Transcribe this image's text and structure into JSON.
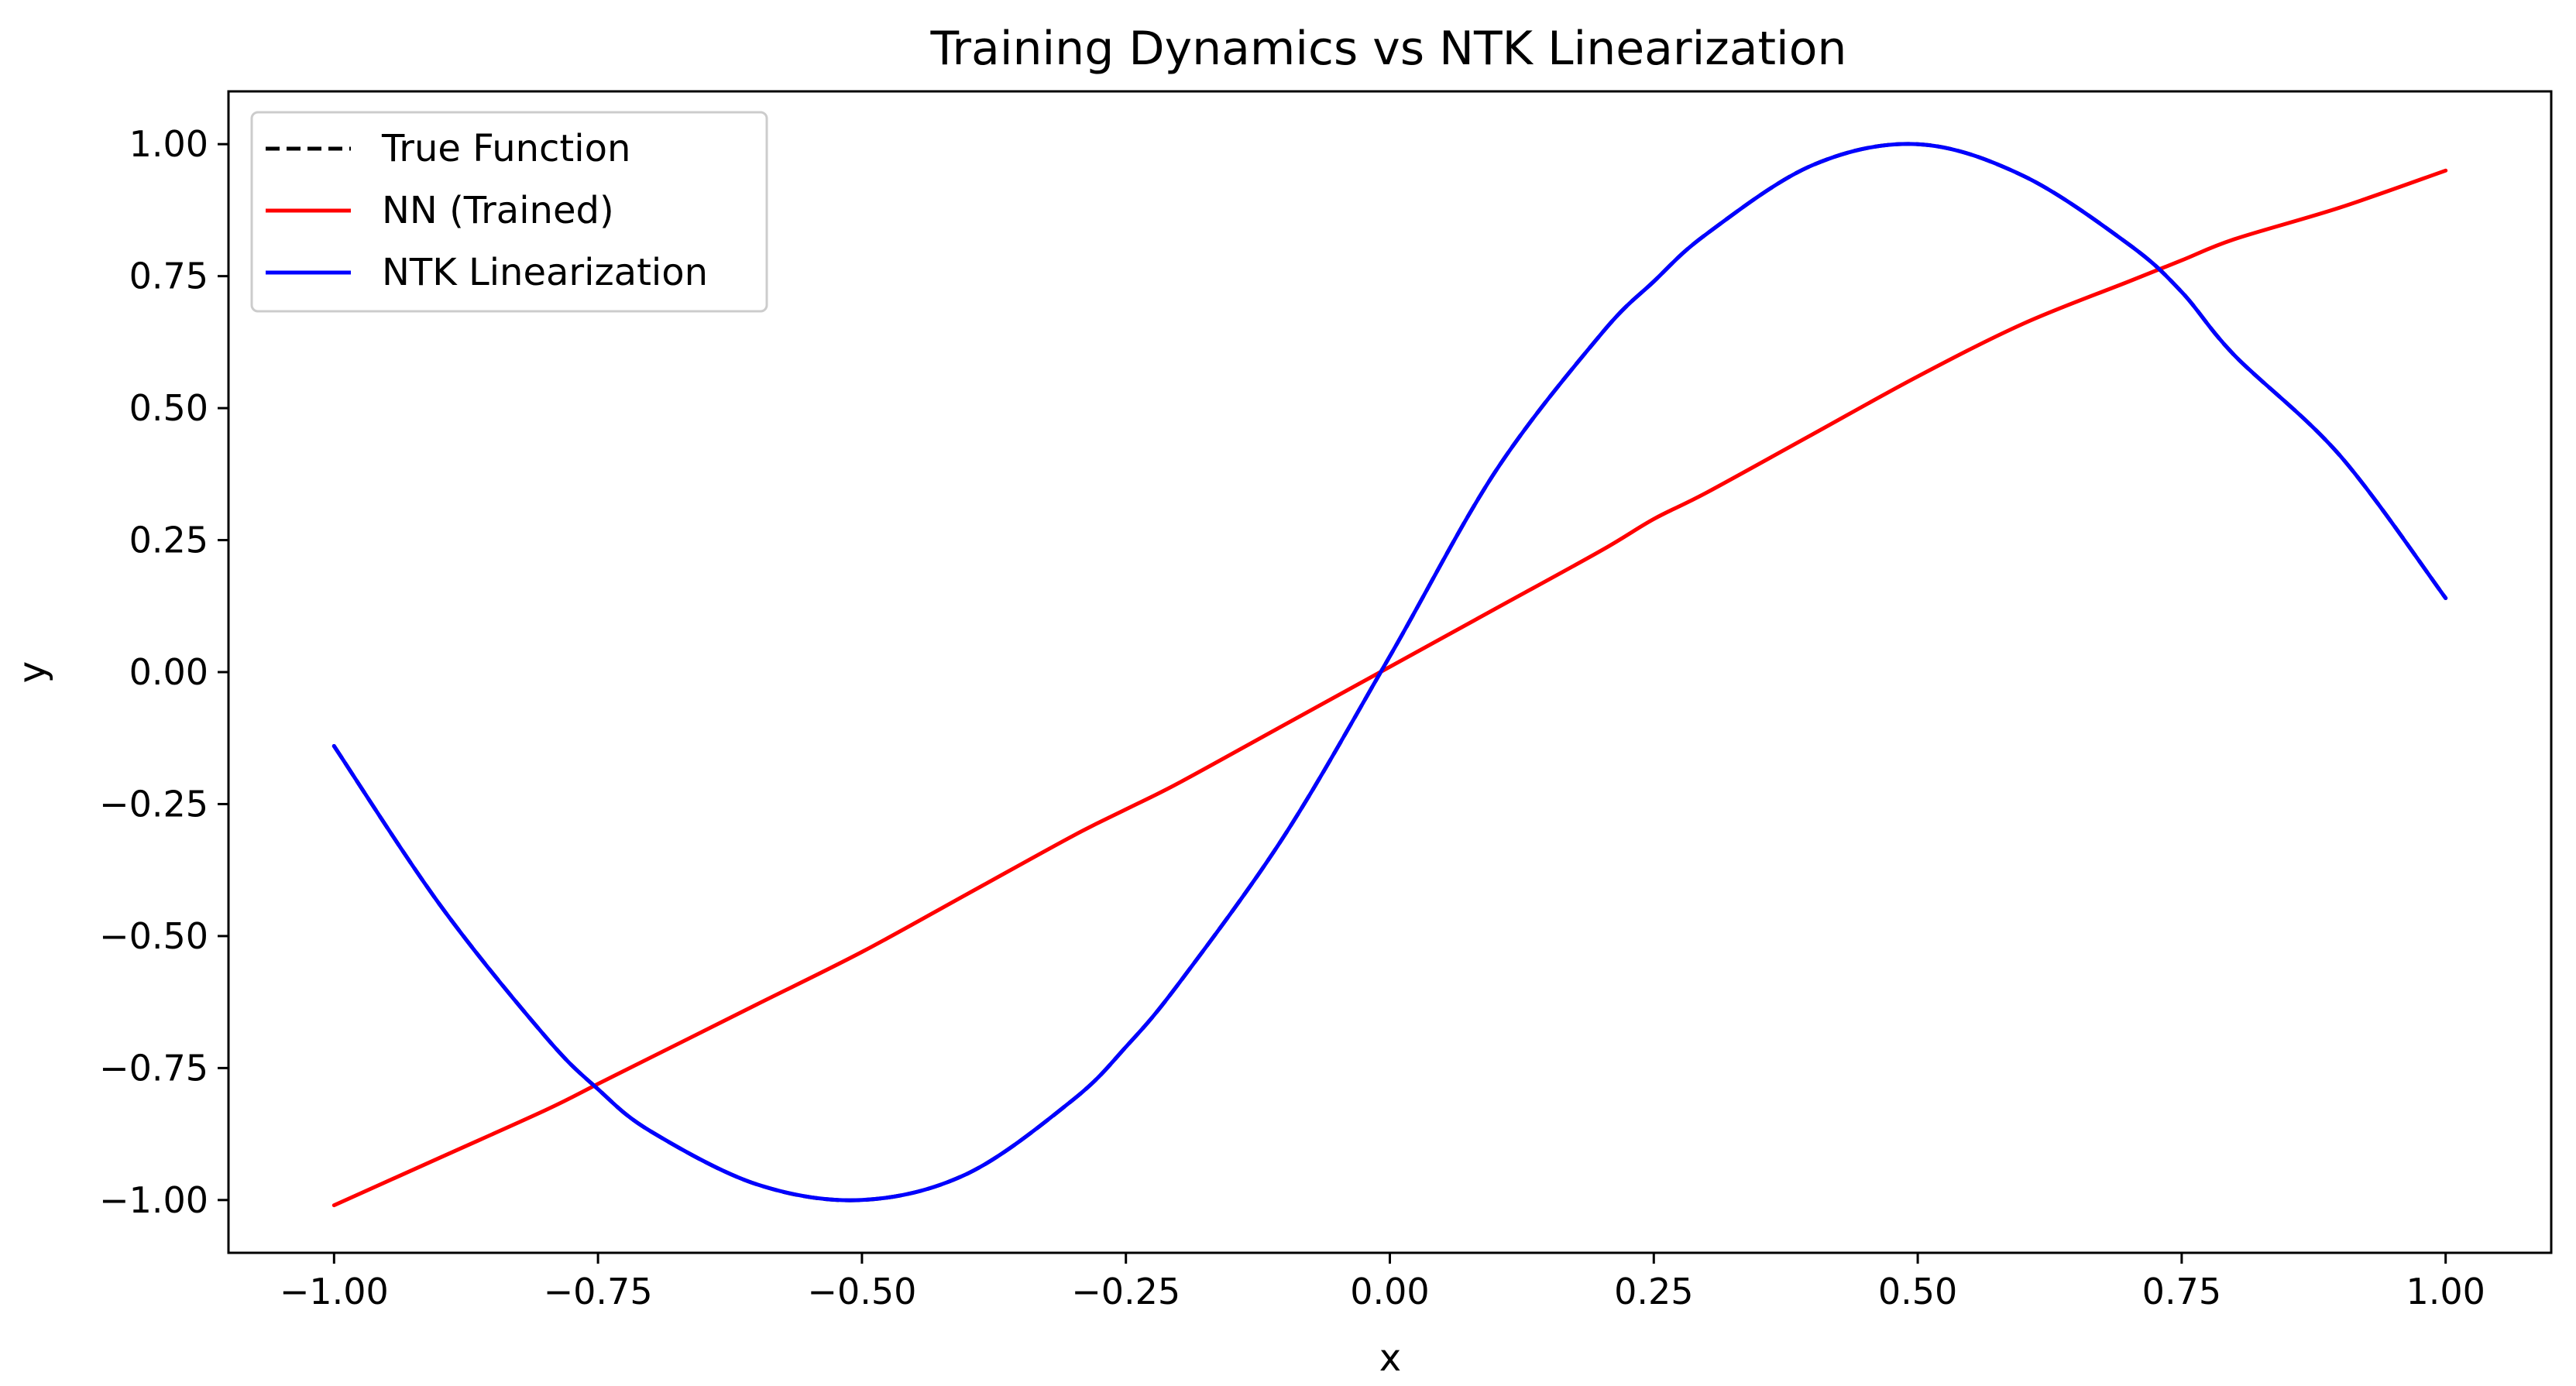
{
  "chart_data": {
    "type": "line",
    "title": "Training Dynamics vs NTK Linearization",
    "xlabel": "x",
    "ylabel": "y",
    "xlim": [
      -1.1,
      1.1
    ],
    "ylim": [
      -1.1,
      1.1
    ],
    "x_ticks": [
      -1.0,
      -0.75,
      -0.5,
      -0.25,
      0.0,
      0.25,
      0.5,
      0.75,
      1.0
    ],
    "x_tick_labels": [
      "−1.00",
      "−0.75",
      "−0.50",
      "−0.25",
      "0.00",
      "0.25",
      "0.50",
      "0.75",
      "1.00"
    ],
    "y_ticks": [
      1.0,
      0.75,
      0.5,
      0.25,
      0.0,
      -0.25,
      -0.5,
      -0.75,
      -1.0
    ],
    "y_tick_labels": [
      "1.00",
      "0.75",
      "0.50",
      "0.25",
      "0.00",
      "−0.25",
      "−0.50",
      "−0.75",
      "−1.00"
    ],
    "grid": false,
    "legend_position": "top-left",
    "x": [
      -1.0,
      -0.9,
      -0.8,
      -0.75,
      -0.7,
      -0.6,
      -0.5,
      -0.4,
      -0.3,
      -0.25,
      -0.2,
      -0.1,
      0.0,
      0.1,
      0.2,
      0.25,
      0.3,
      0.4,
      0.5,
      0.6,
      0.7,
      0.75,
      0.8,
      0.9,
      1.0
    ],
    "series": [
      {
        "name": "True Function",
        "color": "#000000",
        "dashed": true,
        "values": [
          -0.14,
          -0.44,
          -0.69,
          -0.79,
          -0.87,
          -0.97,
          -1.0,
          -0.95,
          -0.81,
          -0.71,
          -0.59,
          -0.31,
          0.03,
          0.38,
          0.64,
          0.74,
          0.83,
          0.96,
          1.0,
          0.94,
          0.81,
          0.72,
          0.6,
          0.41,
          0.14
        ]
      },
      {
        "name": "NN (Trained)",
        "color": "#ff0000",
        "dashed": false,
        "values": [
          -1.01,
          -0.92,
          -0.83,
          -0.78,
          -0.73,
          -0.63,
          -0.53,
          -0.42,
          -0.31,
          -0.26,
          -0.21,
          -0.1,
          0.01,
          0.12,
          0.23,
          0.29,
          0.34,
          0.45,
          0.56,
          0.66,
          0.74,
          0.78,
          0.82,
          0.88,
          0.95
        ]
      },
      {
        "name": "NTK Linearization",
        "color": "#0000ff",
        "dashed": false,
        "values": [
          -0.14,
          -0.44,
          -0.69,
          -0.79,
          -0.87,
          -0.97,
          -1.0,
          -0.95,
          -0.81,
          -0.71,
          -0.59,
          -0.31,
          0.03,
          0.38,
          0.64,
          0.74,
          0.83,
          0.96,
          1.0,
          0.94,
          0.81,
          0.72,
          0.6,
          0.41,
          0.14
        ]
      }
    ]
  }
}
